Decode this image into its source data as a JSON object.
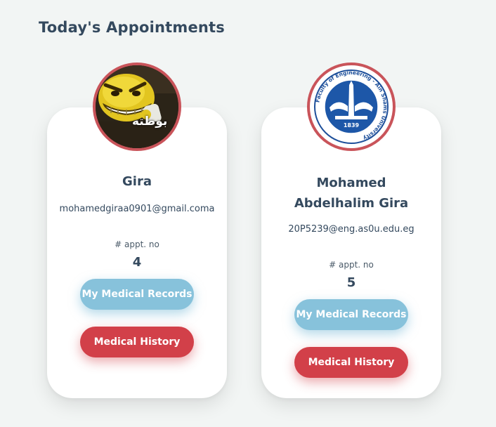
{
  "page": {
    "title": "Today's Appointments"
  },
  "appointments": [
    {
      "name": "Gira",
      "email": "mohamedgiraa0901@gmail.coma",
      "avatar_text": "بوطته",
      "appt_label": "# appt. no",
      "appt_no": "4",
      "records_label": "My Medical Records",
      "history_label": "Medical History"
    },
    {
      "name": "Mohamed Abdelhalim Gira",
      "email": "20P5239@eng.as0u.edu.eg",
      "avatar_text": "Faculty of Engineering - Ain Shams University",
      "avatar_year": "1839",
      "appt_label": "# appt. no",
      "appt_no": "5",
      "records_label": "My Medical Records",
      "history_label": "Medical History"
    }
  ],
  "colors": {
    "accent_red": "#d24049",
    "accent_blue": "#87c2db",
    "avatar_border": "#c9545a",
    "text": "#34495e",
    "background": "#f2f5f4"
  }
}
